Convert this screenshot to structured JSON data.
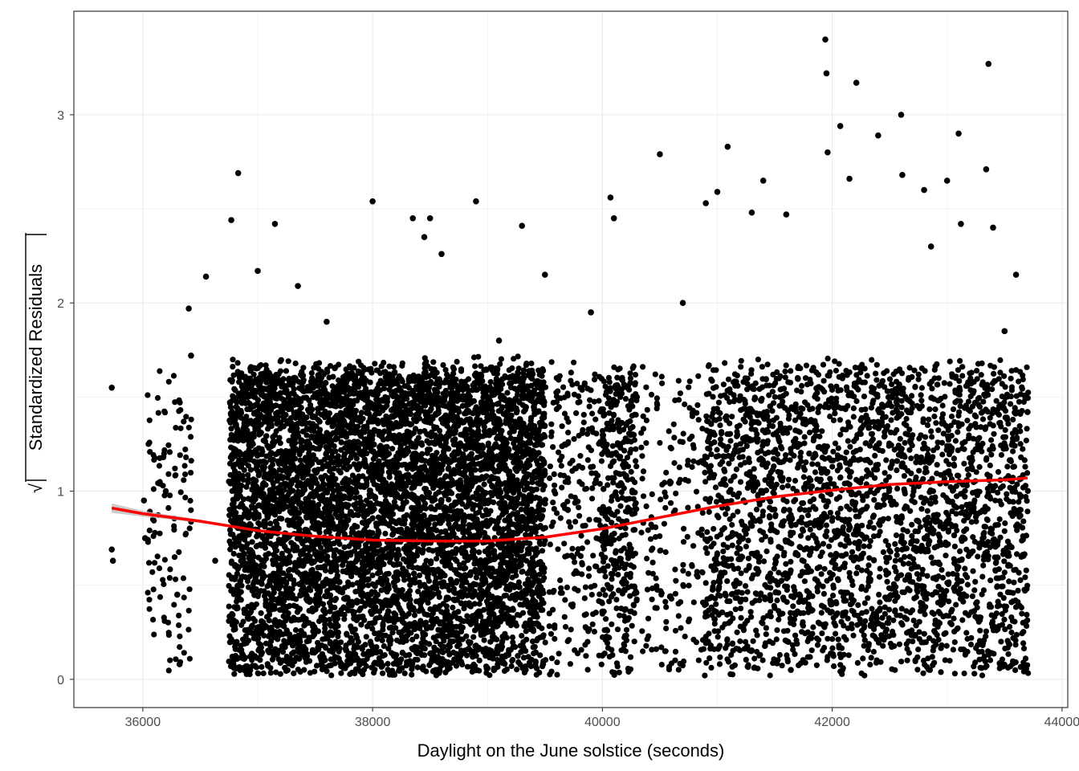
{
  "chart_data": {
    "type": "scatter",
    "title": "",
    "xlabel": "Daylight on the June solstice (seconds)",
    "ylabel": "Standardized  Residuals",
    "ylabel_prefix": "√",
    "xlim": [
      35400,
      44050
    ],
    "ylim": [
      -0.15,
      3.55
    ],
    "x_ticks": [
      36000,
      38000,
      40000,
      42000,
      44000
    ],
    "x_tick_labels": [
      "36000",
      "38000",
      "40000",
      "42000",
      "44000"
    ],
    "y_ticks": [
      0,
      1,
      2,
      3
    ],
    "y_tick_labels": [
      "0",
      "1",
      "2",
      "3"
    ],
    "grid": true,
    "panel_border": true,
    "legend": "none",
    "colors": {
      "points": "#000000",
      "smooth": "#ff0000",
      "ribbon": "#bfbfbf",
      "grid": "#ebebeb",
      "border": "#333333"
    },
    "smooth_line": {
      "method": "loess",
      "x": [
        35730,
        36000,
        36500,
        37000,
        37500,
        38000,
        38500,
        39000,
        39500,
        40000,
        40500,
        41000,
        41500,
        42000,
        42500,
        43000,
        43500,
        43700
      ],
      "y": [
        0.91,
        0.88,
        0.84,
        0.79,
        0.76,
        0.74,
        0.735,
        0.735,
        0.755,
        0.8,
        0.86,
        0.92,
        0.97,
        1.005,
        1.035,
        1.05,
        1.06,
        1.07
      ],
      "se_halfwidth": [
        0.025,
        0.015,
        0.008,
        0.005,
        0.004,
        0.004,
        0.003,
        0.003,
        0.003,
        0.004,
        0.004,
        0.004,
        0.004,
        0.004,
        0.004,
        0.005,
        0.006,
        0.008
      ]
    },
    "series": [
      {
        "x": [
          35730,
          35730,
          35740,
          36010,
          36020,
          36200,
          36300,
          36320,
          36400,
          36420,
          36550,
          36630,
          36770,
          36780,
          36830,
          36850,
          37000,
          37150,
          37350,
          37500,
          37600,
          37700,
          38000,
          38150,
          38350,
          38450,
          38500,
          38550,
          38600,
          38700,
          38900,
          39100,
          39300,
          39350,
          39500,
          39700,
          39900,
          40070,
          40100,
          40300,
          40500,
          40700,
          40900,
          40920,
          41000,
          41090,
          41300,
          41400,
          41600,
          41640,
          41800,
          41940,
          41950,
          41960,
          42070,
          42150,
          42210,
          42400,
          42600,
          42610,
          42800,
          42850,
          42860,
          43000,
          43100,
          43120,
          43340,
          43360,
          43400,
          43500,
          43600,
          43700
        ],
        "y": [
          1.55,
          0.69,
          0.63,
          0.95,
          0.75,
          1.0,
          0.45,
          0.08,
          1.97,
          1.72,
          2.14,
          0.63,
          2.44,
          0.12,
          2.69,
          1.2,
          2.17,
          2.42,
          2.09,
          0.8,
          1.9,
          0.9,
          2.54,
          0.9,
          2.45,
          2.35,
          2.45,
          0.05,
          2.26,
          1.5,
          2.54,
          1.8,
          2.41,
          0.5,
          2.15,
          0.9,
          1.95,
          2.56,
          2.45,
          1.5,
          2.79,
          2.0,
          2.53,
          0.2,
          2.59,
          2.83,
          2.48,
          2.65,
          2.47,
          0.05,
          1.2,
          3.4,
          3.22,
          2.8,
          2.94,
          2.66,
          3.17,
          2.89,
          3.0,
          2.68,
          2.6,
          0.05,
          2.3,
          2.65,
          2.9,
          2.42,
          2.71,
          3.27,
          2.4,
          1.85,
          2.15,
          1.42
        ]
      }
    ]
  }
}
